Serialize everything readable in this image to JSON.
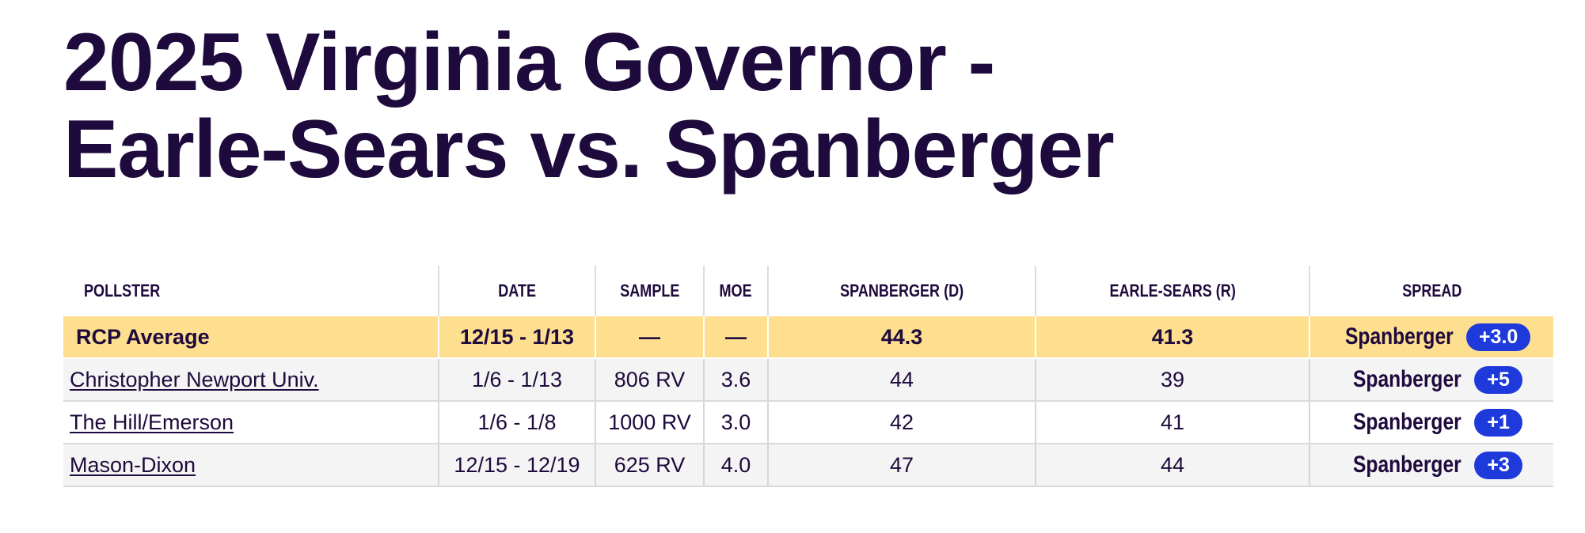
{
  "title": {
    "line1": "2025 Virginia Governor -",
    "line2": "Earle-Sears vs. Spanberger"
  },
  "table": {
    "headers": [
      "POLLSTER",
      "DATE",
      "SAMPLE",
      "MOE",
      "SPANBERGER (D)",
      "EARLE-SEARS (R)",
      "SPREAD"
    ],
    "rcp_average": {
      "pollster": "RCP Average",
      "date": "12/15 - 1/13",
      "sample": "—",
      "moe": "—",
      "spanberger": "44.3",
      "earle_sears": "41.3",
      "spread_winner": "Spanberger",
      "spread_value": "+3.0"
    },
    "polls": [
      {
        "pollster": "Christopher Newport Univ.",
        "date": "1/6 - 1/13",
        "sample": "806 RV",
        "moe": "3.6",
        "spanberger": "44",
        "earle_sears": "39",
        "spread_winner": "Spanberger",
        "spread_value": "+5"
      },
      {
        "pollster": "The Hill/Emerson",
        "date": "1/6 - 1/8",
        "sample": "1000 RV",
        "moe": "3.0",
        "spanberger": "42",
        "earle_sears": "41",
        "spread_winner": "Spanberger",
        "spread_value": "+1"
      },
      {
        "pollster": "Mason-Dixon",
        "date": "12/15 - 12/19",
        "sample": "625 RV",
        "moe": "4.0",
        "spanberger": "47",
        "earle_sears": "44",
        "spread_winner": "Spanberger",
        "spread_value": "+3"
      }
    ]
  },
  "colors": {
    "title_text": "#1e0a3c",
    "rcp_row_background": "#fddf8f",
    "alt_row_background": "#f4f4f4",
    "spread_badge": "#1f3adb"
  }
}
